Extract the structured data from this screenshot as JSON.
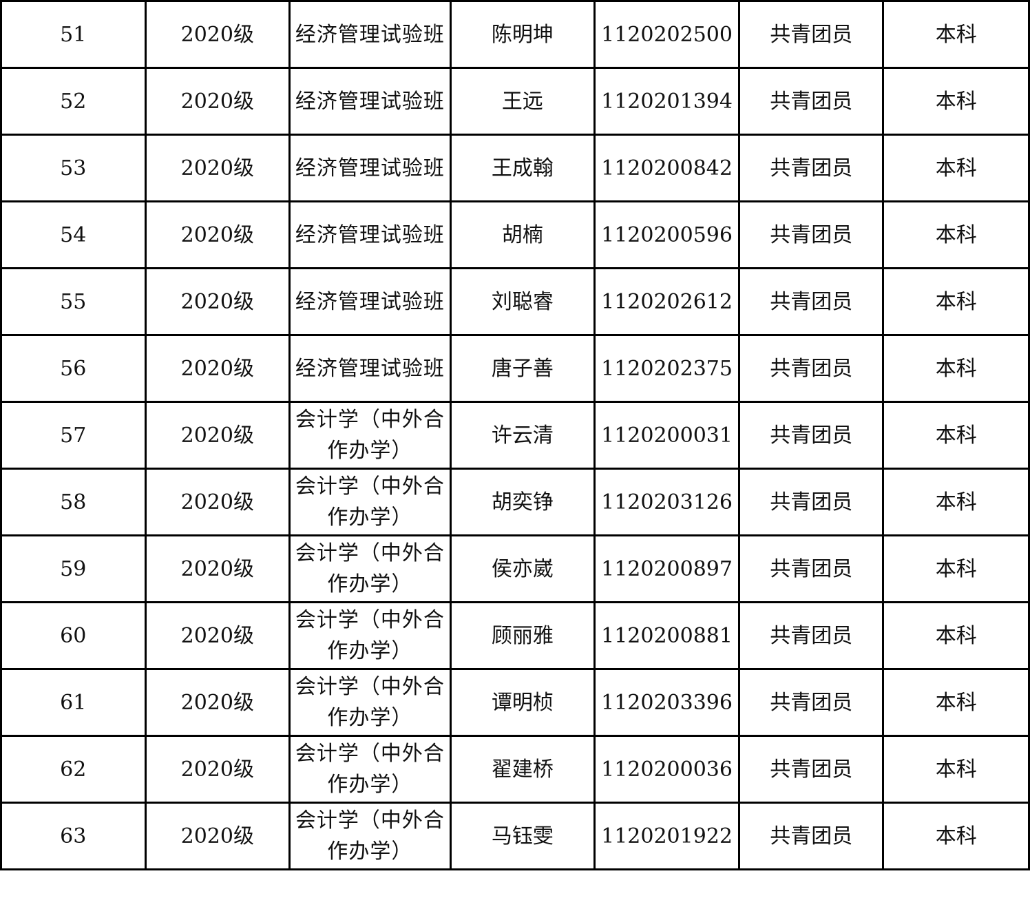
{
  "table": {
    "rows": [
      [
        "51",
        "2020级",
        "经济管理试验班",
        "陈明坤",
        "1120202500",
        "共青团员",
        "本科"
      ],
      [
        "52",
        "2020级",
        "经济管理试验班",
        "王远",
        "1120201394",
        "共青团员",
        "本科"
      ],
      [
        "53",
        "2020级",
        "经济管理试验班",
        "王成翰",
        "1120200842",
        "共青团员",
        "本科"
      ],
      [
        "54",
        "2020级",
        "经济管理试验班",
        "胡楠",
        "1120200596",
        "共青团员",
        "本科"
      ],
      [
        "55",
        "2020级",
        "经济管理试验班",
        "刘聪睿",
        "1120202612",
        "共青团员",
        "本科"
      ],
      [
        "56",
        "2020级",
        "经济管理试验班",
        "唐子善",
        "1120202375",
        "共青团员",
        "本科"
      ],
      [
        "57",
        "2020级",
        "会计学（中外合作办学）",
        "许云清",
        "1120200031",
        "共青团员",
        "本科"
      ],
      [
        "58",
        "2020级",
        "会计学（中外合作办学）",
        "胡奕铮",
        "1120203126",
        "共青团员",
        "本科"
      ],
      [
        "59",
        "2020级",
        "会计学（中外合作办学）",
        "侯亦崴",
        "1120200897",
        "共青团员",
        "本科"
      ],
      [
        "60",
        "2020级",
        "会计学（中外合作办学）",
        "顾丽雅",
        "1120200881",
        "共青团员",
        "本科"
      ],
      [
        "61",
        "2020级",
        "会计学（中外合作办学）",
        "谭明桢",
        "1120203396",
        "共青团员",
        "本科"
      ],
      [
        "62",
        "2020级",
        "会计学（中外合作办学）",
        "翟建桥",
        "1120200036",
        "共青团员",
        "本科"
      ],
      [
        "63",
        "2020级",
        "会计学（中外合作办学）",
        "马钰雯",
        "1120201922",
        "共青团员",
        "本科"
      ]
    ]
  }
}
